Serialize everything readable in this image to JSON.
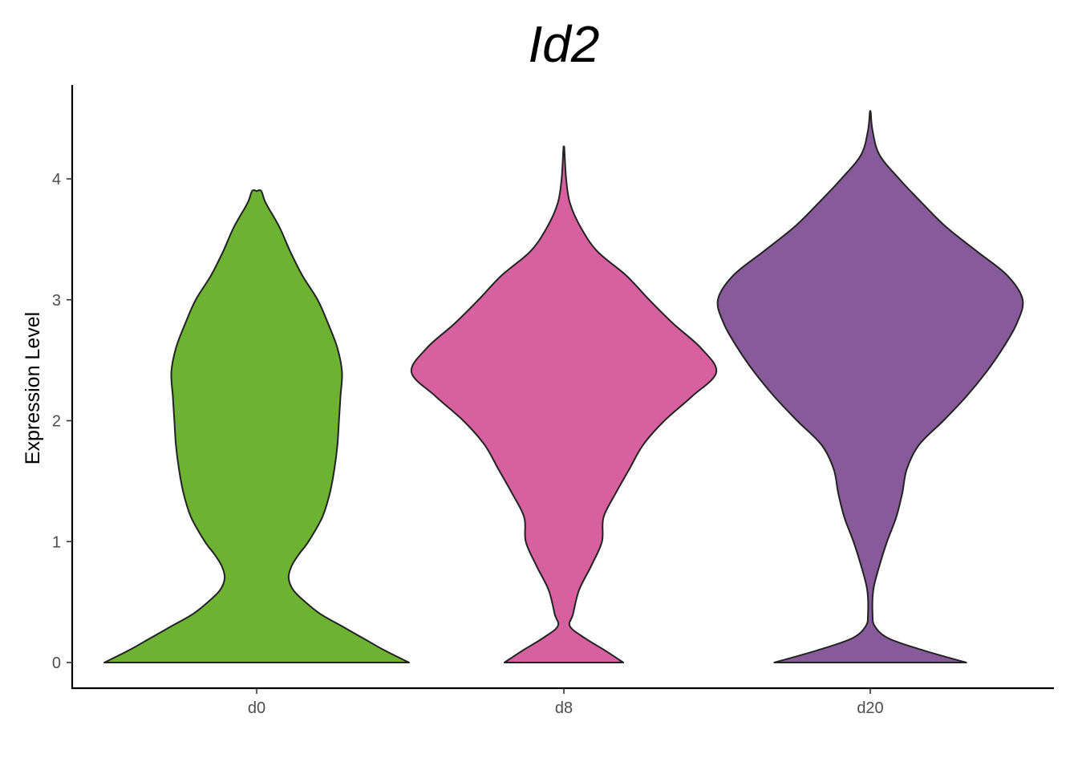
{
  "chart_data": {
    "type": "violin",
    "title": "Id2",
    "xlabel": "",
    "ylabel": "Expression Level",
    "ylim": [
      -0.2,
      4.6
    ],
    "yticks": [
      0,
      1,
      2,
      3,
      4
    ],
    "grid": false,
    "legend": "none",
    "categories": [
      "d0",
      "d8",
      "d20"
    ],
    "colors": [
      "#6db232",
      "#d6619e",
      "#875b99"
    ],
    "series": [
      {
        "category": "d0",
        "max": 3.9,
        "profile": [
          [
            0.0,
            1.0
          ],
          [
            0.1,
            0.84
          ],
          [
            0.2,
            0.7
          ],
          [
            0.3,
            0.56
          ],
          [
            0.4,
            0.42
          ],
          [
            0.5,
            0.32
          ],
          [
            0.6,
            0.24
          ],
          [
            0.7,
            0.21
          ],
          [
            0.8,
            0.23
          ],
          [
            0.9,
            0.28
          ],
          [
            1.0,
            0.34
          ],
          [
            1.2,
            0.43
          ],
          [
            1.4,
            0.48
          ],
          [
            1.6,
            0.51
          ],
          [
            1.8,
            0.53
          ],
          [
            2.0,
            0.54
          ],
          [
            2.2,
            0.55
          ],
          [
            2.4,
            0.56
          ],
          [
            2.6,
            0.53
          ],
          [
            2.8,
            0.47
          ],
          [
            3.0,
            0.4
          ],
          [
            3.2,
            0.3
          ],
          [
            3.4,
            0.22
          ],
          [
            3.6,
            0.15
          ],
          [
            3.8,
            0.06
          ],
          [
            3.9,
            0.03
          ]
        ]
      },
      {
        "category": "d8",
        "max": 4.25,
        "profile": [
          [
            0.0,
            0.39
          ],
          [
            0.1,
            0.27
          ],
          [
            0.2,
            0.14
          ],
          [
            0.3,
            0.04
          ],
          [
            0.4,
            0.06
          ],
          [
            0.6,
            0.1
          ],
          [
            0.8,
            0.18
          ],
          [
            1.0,
            0.25
          ],
          [
            1.2,
            0.26
          ],
          [
            1.4,
            0.34
          ],
          [
            1.6,
            0.43
          ],
          [
            1.8,
            0.52
          ],
          [
            2.0,
            0.66
          ],
          [
            2.2,
            0.84
          ],
          [
            2.4,
            1.0
          ],
          [
            2.6,
            0.9
          ],
          [
            2.8,
            0.72
          ],
          [
            3.0,
            0.56
          ],
          [
            3.2,
            0.41
          ],
          [
            3.4,
            0.22
          ],
          [
            3.6,
            0.11
          ],
          [
            3.8,
            0.04
          ],
          [
            4.0,
            0.015
          ],
          [
            4.25,
            0.003
          ]
        ]
      },
      {
        "category": "d20",
        "max": 4.55,
        "profile": [
          [
            0.0,
            0.63
          ],
          [
            0.1,
            0.35
          ],
          [
            0.2,
            0.12
          ],
          [
            0.3,
            0.03
          ],
          [
            0.4,
            0.015
          ],
          [
            0.6,
            0.02
          ],
          [
            0.8,
            0.06
          ],
          [
            1.0,
            0.11
          ],
          [
            1.2,
            0.17
          ],
          [
            1.4,
            0.21
          ],
          [
            1.6,
            0.24
          ],
          [
            1.8,
            0.32
          ],
          [
            2.0,
            0.48
          ],
          [
            2.2,
            0.63
          ],
          [
            2.4,
            0.76
          ],
          [
            2.6,
            0.87
          ],
          [
            2.8,
            0.96
          ],
          [
            3.0,
            1.0
          ],
          [
            3.2,
            0.9
          ],
          [
            3.4,
            0.7
          ],
          [
            3.6,
            0.5
          ],
          [
            3.8,
            0.34
          ],
          [
            4.0,
            0.19
          ],
          [
            4.2,
            0.06
          ],
          [
            4.4,
            0.015
          ],
          [
            4.55,
            0.003
          ]
        ]
      }
    ]
  }
}
